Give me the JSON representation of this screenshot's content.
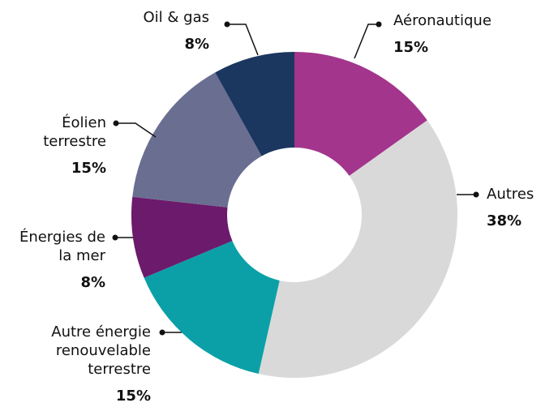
{
  "chart_data": {
    "type": "donut",
    "categories": [
      "Aéronautique",
      "Autres",
      "Autre énergie renouvelable terrestre",
      "Énergies de la mer",
      "Éolien terrestre",
      "Oil & gas"
    ],
    "values": [
      15,
      38,
      15,
      8,
      15,
      8
    ],
    "value_labels": [
      "15%",
      "38%",
      "15%",
      "8%",
      "15%",
      "8%"
    ],
    "colors": [
      "#a3358d",
      "#d9d9d9",
      "#0ba0a7",
      "#6c1a6b",
      "#6a6e91",
      "#1b365f"
    ]
  }
}
